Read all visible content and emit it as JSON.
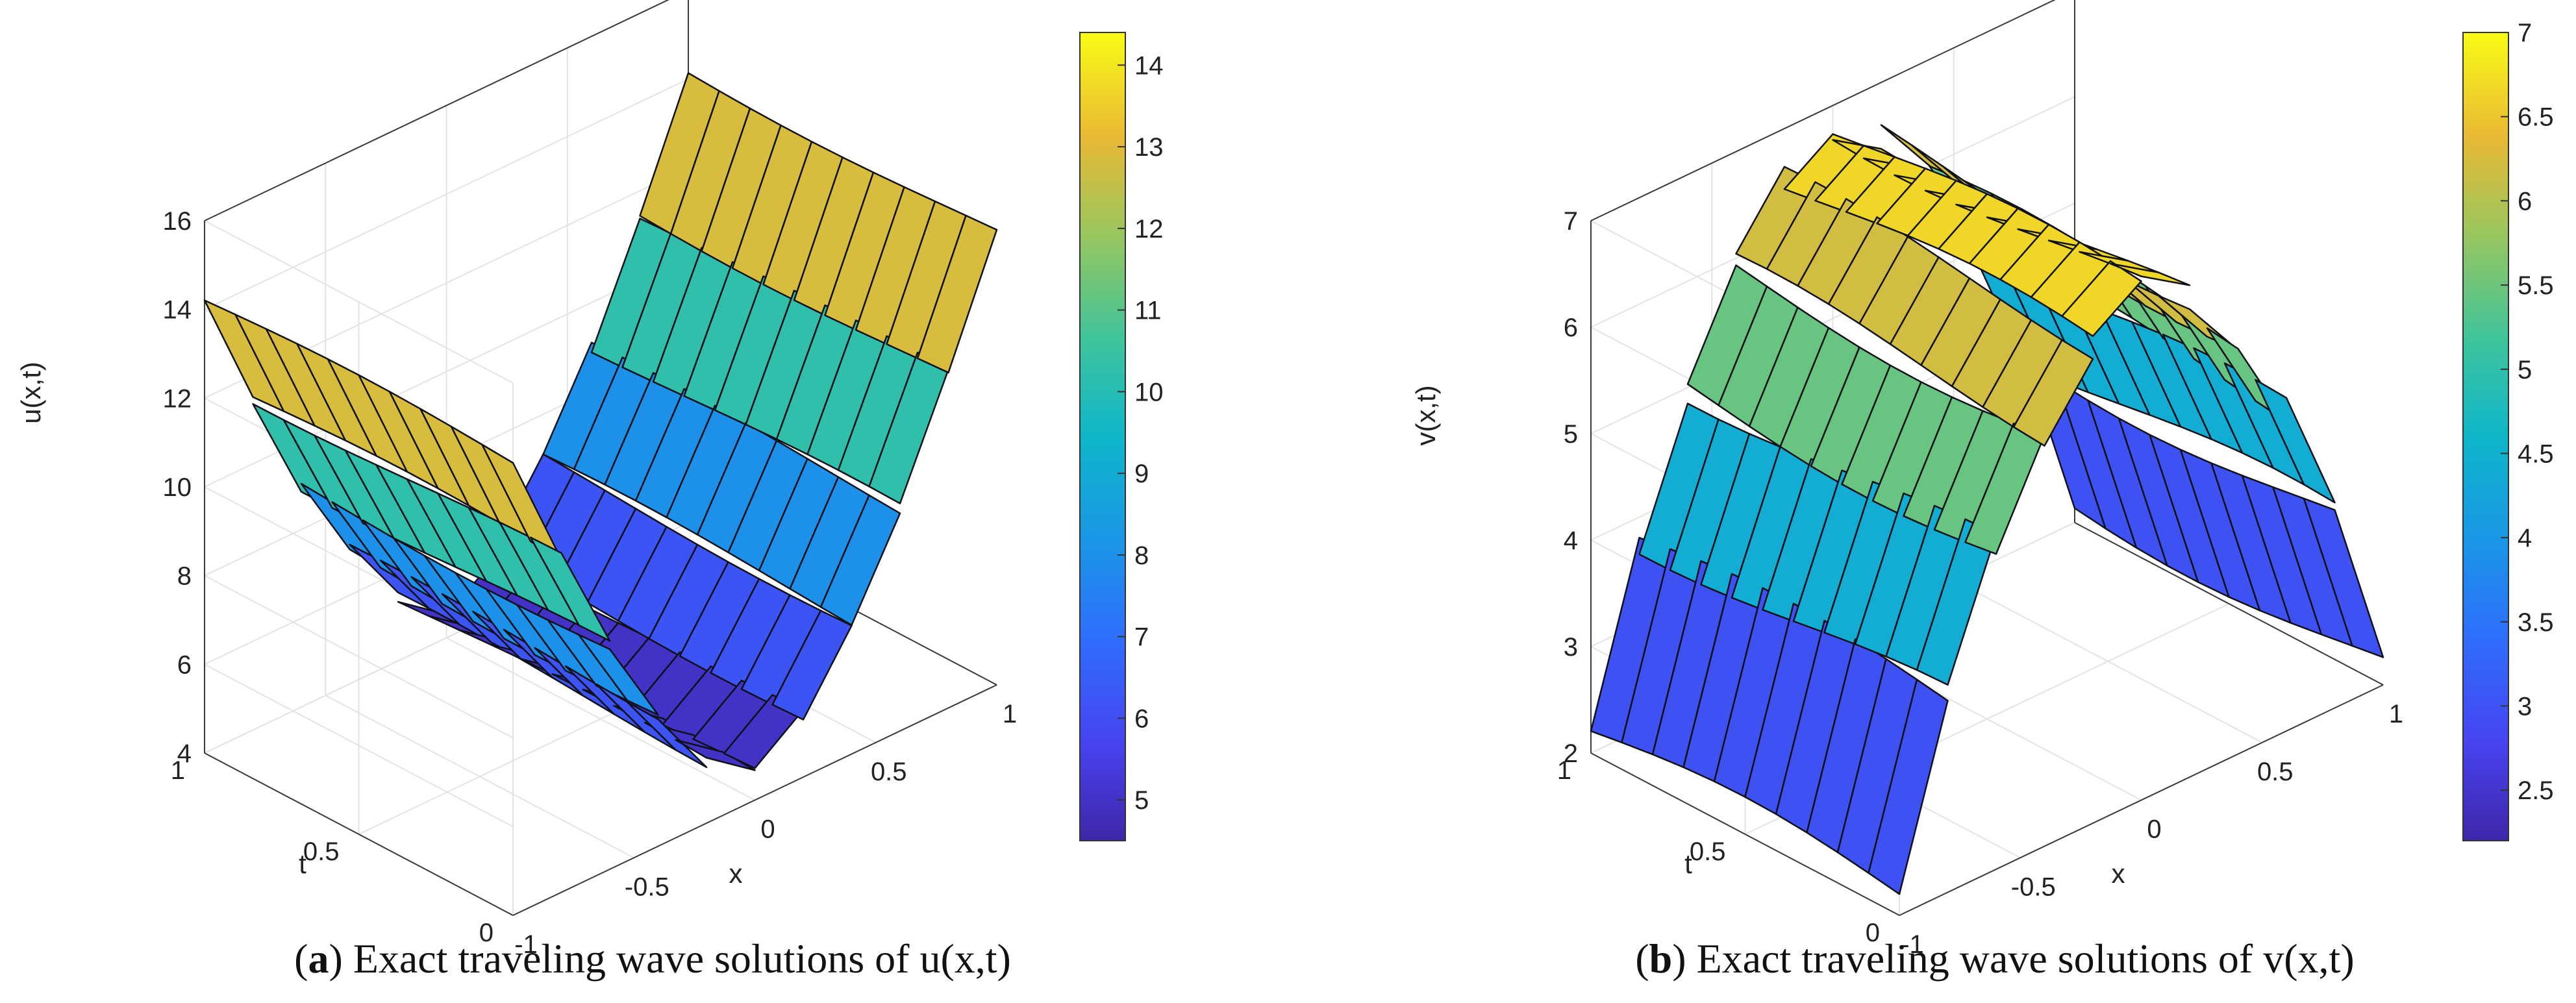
{
  "chart_data": [
    {
      "id": "a",
      "type": "surface3d",
      "title": "Exact traveling wave solutions of u(x,t)",
      "panel_label": "a",
      "caption_prefix": "(",
      "caption_suffix": ") Exact traveling wave solutions of u(x,t)",
      "xlabel": "x",
      "ylabel": "t",
      "zlabel": "u(x,t)",
      "xlim": [
        -1,
        1
      ],
      "ylim": [
        0,
        1
      ],
      "zlim": [
        4,
        16
      ],
      "xticks": [
        "-1",
        "-0.5",
        "0",
        "0.5",
        "1"
      ],
      "yticks": [
        "0",
        "0.5",
        "1"
      ],
      "zticks": [
        "4",
        "6",
        "8",
        "10",
        "12",
        "14",
        "16"
      ],
      "colormap": "parula",
      "colorbar": {
        "range": [
          4.5,
          14.4
        ],
        "ticks": [
          "5",
          "6",
          "7",
          "8",
          "9",
          "10",
          "11",
          "12",
          "13",
          "14"
        ]
      },
      "x": [
        -1.0,
        -0.8,
        -0.6,
        -0.4,
        -0.2,
        0.0,
        0.2,
        0.4,
        0.6,
        0.8,
        1.0
      ],
      "profile_z": [
        14.2,
        11.5,
        9.0,
        7.0,
        5.4,
        4.6,
        5.4,
        7.0,
        9.0,
        11.5,
        14.2
      ],
      "t_steps": [
        0.0,
        0.1,
        0.2,
        0.3,
        0.4,
        0.5,
        0.6,
        0.7,
        0.8,
        0.9,
        1.0
      ],
      "grid": true
    },
    {
      "id": "b",
      "type": "surface3d",
      "title": "Exact traveling wave solutions of v(x,t)",
      "panel_label": "b",
      "caption_prefix": "(",
      "caption_suffix": ") Exact traveling wave solutions of v(x,t)",
      "xlabel": "x",
      "ylabel": "t",
      "zlabel": "v(x,t)",
      "xlim": [
        -1,
        1
      ],
      "ylim": [
        0,
        1
      ],
      "zlim": [
        2,
        7
      ],
      "xticks": [
        "-1",
        "-0.5",
        "0",
        "0.5",
        "1"
      ],
      "yticks": [
        "0",
        "0.5",
        "1"
      ],
      "zticks": [
        "2",
        "3",
        "4",
        "5",
        "6",
        "7"
      ],
      "colormap": "parula",
      "colorbar": {
        "range": [
          2.2,
          7.0
        ],
        "ticks": [
          "2.5",
          "3",
          "3.5",
          "4",
          "4.5",
          "5",
          "5.5",
          "6",
          "6.5",
          "7"
        ]
      },
      "x": [
        -1.0,
        -0.8,
        -0.6,
        -0.4,
        -0.2,
        0.0,
        0.2,
        0.4,
        0.6,
        0.8,
        1.0
      ],
      "profile_z": [
        2.2,
        3.8,
        5.0,
        5.9,
        6.5,
        6.8,
        6.5,
        5.9,
        5.0,
        3.8,
        2.2
      ],
      "t_steps": [
        0.0,
        0.1,
        0.2,
        0.3,
        0.4,
        0.5,
        0.6,
        0.7,
        0.8,
        0.9,
        1.0
      ],
      "grid": true
    }
  ]
}
